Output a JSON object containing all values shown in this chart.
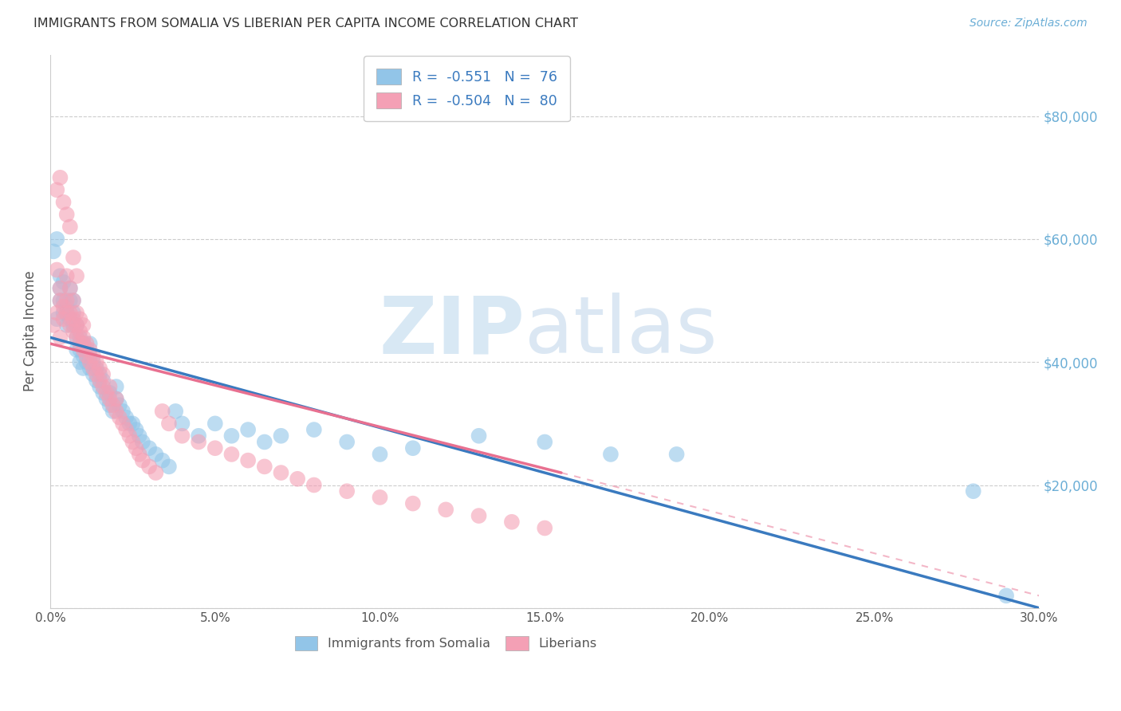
{
  "title": "IMMIGRANTS FROM SOMALIA VS LIBERIAN PER CAPITA INCOME CORRELATION CHART",
  "source": "Source: ZipAtlas.com",
  "ylabel": "Per Capita Income",
  "xlim": [
    0.0,
    0.3
  ],
  "ylim": [
    0,
    90000
  ],
  "xtick_labels": [
    "0.0%",
    "5.0%",
    "10.0%",
    "15.0%",
    "20.0%",
    "25.0%",
    "30.0%"
  ],
  "xtick_vals": [
    0.0,
    0.05,
    0.1,
    0.15,
    0.2,
    0.25,
    0.3
  ],
  "ytick_vals": [
    0,
    20000,
    40000,
    60000,
    80000
  ],
  "ytick_labels": [
    "",
    "$20,000",
    "$40,000",
    "$60,000",
    "$80,000"
  ],
  "legend_r_blue": "-0.551",
  "legend_n_blue": "76",
  "legend_r_pink": "-0.504",
  "legend_n_pink": "80",
  "color_blue": "#92c5e8",
  "color_pink": "#f4a0b5",
  "color_blue_line": "#3a7abf",
  "color_pink_line": "#e87090",
  "color_axis_right": "#6baed6",
  "blue_line_x0": 0.0,
  "blue_line_y0": 44000,
  "blue_line_x1": 0.3,
  "blue_line_y1": 0,
  "pink_line_solid_x0": 0.0,
  "pink_line_solid_y0": 43000,
  "pink_line_solid_x1": 0.155,
  "pink_line_solid_y1": 22000,
  "pink_line_dash_x0": 0.155,
  "pink_line_dash_y0": 22000,
  "pink_line_dash_x1": 0.3,
  "pink_line_dash_y1": 2000,
  "blue_scatter_x": [
    0.001,
    0.002,
    0.002,
    0.003,
    0.003,
    0.003,
    0.004,
    0.004,
    0.004,
    0.005,
    0.005,
    0.005,
    0.006,
    0.006,
    0.006,
    0.007,
    0.007,
    0.007,
    0.008,
    0.008,
    0.008,
    0.009,
    0.009,
    0.009,
    0.01,
    0.01,
    0.01,
    0.011,
    0.011,
    0.012,
    0.012,
    0.012,
    0.013,
    0.013,
    0.014,
    0.014,
    0.015,
    0.015,
    0.016,
    0.016,
    0.017,
    0.018,
    0.018,
    0.019,
    0.02,
    0.02,
    0.021,
    0.022,
    0.023,
    0.024,
    0.025,
    0.026,
    0.027,
    0.028,
    0.03,
    0.032,
    0.034,
    0.036,
    0.038,
    0.04,
    0.045,
    0.05,
    0.055,
    0.06,
    0.065,
    0.07,
    0.08,
    0.09,
    0.1,
    0.11,
    0.13,
    0.15,
    0.17,
    0.19,
    0.28,
    0.29
  ],
  "blue_scatter_y": [
    58000,
    47000,
    60000,
    52000,
    50000,
    54000,
    48000,
    50000,
    53000,
    49000,
    46000,
    48000,
    50000,
    52000,
    47000,
    46000,
    48000,
    50000,
    42000,
    44000,
    46000,
    40000,
    42000,
    44000,
    41000,
    43000,
    39000,
    42000,
    40000,
    41000,
    39000,
    43000,
    38000,
    40000,
    37000,
    39000,
    36000,
    38000,
    35000,
    37000,
    34000,
    33000,
    35000,
    32000,
    34000,
    36000,
    33000,
    32000,
    31000,
    30000,
    30000,
    29000,
    28000,
    27000,
    26000,
    25000,
    24000,
    23000,
    32000,
    30000,
    28000,
    30000,
    28000,
    29000,
    27000,
    28000,
    29000,
    27000,
    25000,
    26000,
    28000,
    27000,
    25000,
    25000,
    19000,
    2000
  ],
  "pink_scatter_x": [
    0.001,
    0.002,
    0.002,
    0.003,
    0.003,
    0.003,
    0.004,
    0.004,
    0.005,
    0.005,
    0.005,
    0.006,
    0.006,
    0.006,
    0.007,
    0.007,
    0.007,
    0.008,
    0.008,
    0.008,
    0.009,
    0.009,
    0.009,
    0.01,
    0.01,
    0.01,
    0.011,
    0.011,
    0.012,
    0.012,
    0.013,
    0.013,
    0.014,
    0.014,
    0.015,
    0.015,
    0.016,
    0.016,
    0.017,
    0.018,
    0.018,
    0.019,
    0.02,
    0.02,
    0.021,
    0.022,
    0.023,
    0.024,
    0.025,
    0.026,
    0.027,
    0.028,
    0.03,
    0.032,
    0.034,
    0.036,
    0.04,
    0.045,
    0.05,
    0.055,
    0.06,
    0.065,
    0.07,
    0.075,
    0.08,
    0.09,
    0.1,
    0.11,
    0.12,
    0.13,
    0.14,
    0.15,
    0.002,
    0.003,
    0.004,
    0.005,
    0.006,
    0.007,
    0.008,
    0.01
  ],
  "pink_scatter_y": [
    46000,
    48000,
    55000,
    50000,
    44000,
    52000,
    47000,
    49000,
    48000,
    50000,
    54000,
    46000,
    48000,
    52000,
    45000,
    47000,
    50000,
    44000,
    46000,
    48000,
    43000,
    45000,
    47000,
    42000,
    44000,
    46000,
    41000,
    43000,
    40000,
    42000,
    39000,
    41000,
    38000,
    40000,
    37000,
    39000,
    36000,
    38000,
    35000,
    34000,
    36000,
    33000,
    32000,
    34000,
    31000,
    30000,
    29000,
    28000,
    27000,
    26000,
    25000,
    24000,
    23000,
    22000,
    32000,
    30000,
    28000,
    27000,
    26000,
    25000,
    24000,
    23000,
    22000,
    21000,
    20000,
    19000,
    18000,
    17000,
    16000,
    15000,
    14000,
    13000,
    68000,
    70000,
    66000,
    64000,
    62000,
    57000,
    54000,
    43000
  ]
}
